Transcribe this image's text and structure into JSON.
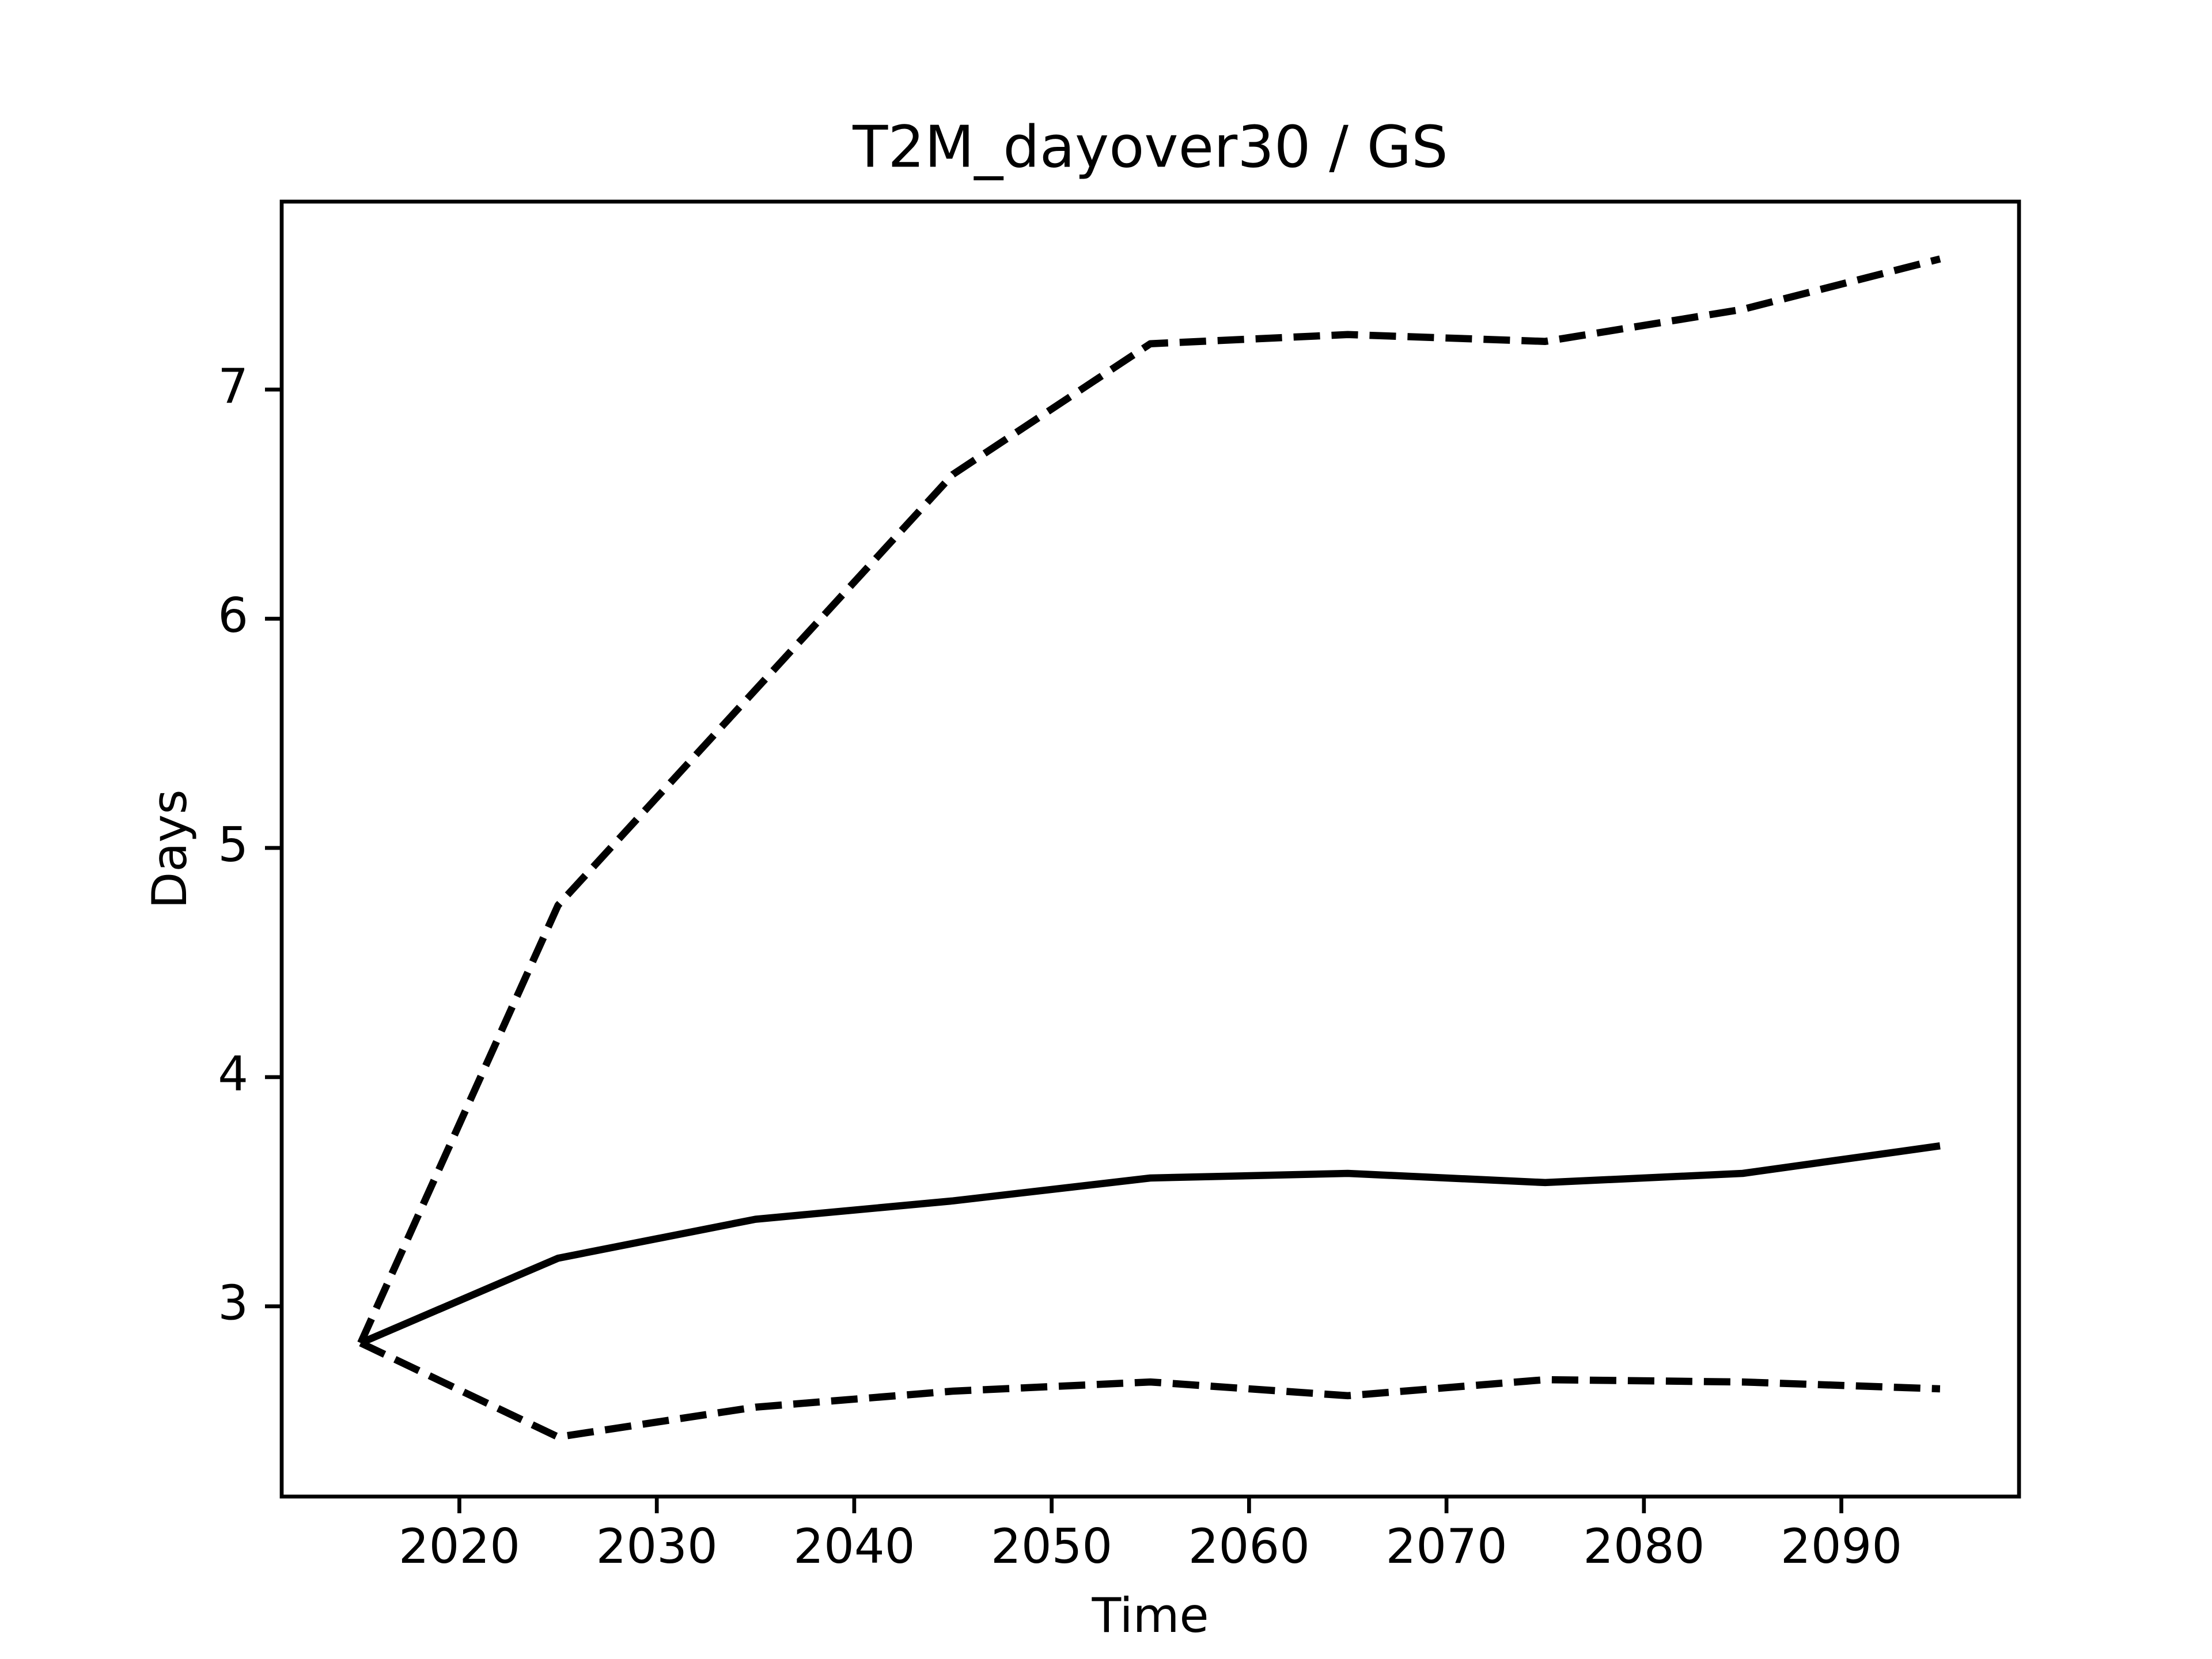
{
  "chart_data": {
    "type": "line",
    "title": "T2M_dayover30 / GS",
    "x_label": "Time",
    "y_label": "Days",
    "x": [
      2015,
      2025,
      2035,
      2045,
      2055,
      2065,
      2075,
      2085,
      2095
    ],
    "series": [
      {
        "color": "#000000",
        "dash": false,
        "values": [
          2.84,
          3.21,
          3.38,
          3.46,
          3.56,
          3.58,
          3.54,
          3.58,
          3.7
        ]
      },
      {
        "color": "#000000",
        "dash": true,
        "values": [
          2.84,
          4.75,
          5.69,
          6.63,
          7.2,
          7.24,
          7.21,
          7.35,
          7.57
        ]
      },
      {
        "color": "#000000",
        "dash": true,
        "values": [
          2.84,
          2.43,
          2.56,
          2.63,
          2.67,
          2.61,
          2.68,
          2.67,
          2.64
        ]
      }
    ],
    "xlim": [
      2011,
      2099
    ],
    "xticks": [
      2020,
      2030,
      2040,
      2050,
      2060,
      2070,
      2080,
      2090
    ],
    "ylim": [
      2.17,
      7.82
    ],
    "yticks": [
      3,
      4,
      5,
      6,
      7
    ],
    "grid": false
  }
}
